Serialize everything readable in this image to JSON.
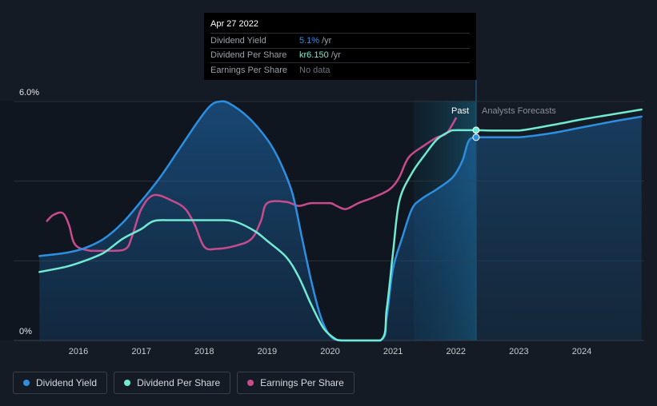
{
  "tooltip": {
    "date": "Apr 27 2022",
    "rows": [
      {
        "label": "Dividend Yield",
        "value": "5.1%",
        "unit": "/yr",
        "color": "#2e8fe0"
      },
      {
        "label": "Dividend Per Share",
        "value": "kr6.150",
        "unit": "/yr",
        "color": "#72ead2"
      },
      {
        "label": "Earnings Per Share",
        "value": "No data",
        "unit": "",
        "color": "#6f747c"
      }
    ]
  },
  "regions": {
    "past_label": "Past",
    "forecast_label": "Analysts Forecasts"
  },
  "legend": [
    {
      "label": "Dividend Yield",
      "color": "#2e8fe0"
    },
    {
      "label": "Dividend Per Share",
      "color": "#72ead2"
    },
    {
      "label": "Earnings Per Share",
      "color": "#c84b8d"
    }
  ],
  "chart_data": {
    "type": "line",
    "title": "",
    "xlabel": "",
    "ylabel": "",
    "xlim": [
      2015.35,
      2024.95
    ],
    "ylim": [
      0,
      6.0
    ],
    "y_tick_labels": [
      {
        "value": 6.0,
        "label": "6.0%"
      },
      {
        "value": 0,
        "label": "0%"
      }
    ],
    "x_ticks": [
      2016,
      2017,
      2018,
      2019,
      2020,
      2021,
      2022,
      2023,
      2024
    ],
    "gridlines_y": [
      2,
      4,
      6
    ],
    "tooltip_x": 2022.32,
    "past_region": [
      2021.33,
      2022.32
    ],
    "series": [
      {
        "name": "Dividend Yield",
        "color": "#2e8fe0",
        "fill": true,
        "points": [
          [
            2015.38,
            2.12
          ],
          [
            2015.8,
            2.2
          ],
          [
            2016.1,
            2.32
          ],
          [
            2016.4,
            2.55
          ],
          [
            2016.7,
            2.95
          ],
          [
            2017.0,
            3.5
          ],
          [
            2017.3,
            4.1
          ],
          [
            2017.6,
            4.8
          ],
          [
            2017.9,
            5.5
          ],
          [
            2018.1,
            5.9
          ],
          [
            2018.25,
            6.0
          ],
          [
            2018.4,
            5.95
          ],
          [
            2018.7,
            5.6
          ],
          [
            2019.0,
            5.05
          ],
          [
            2019.2,
            4.5
          ],
          [
            2019.4,
            3.7
          ],
          [
            2019.55,
            2.6
          ],
          [
            2019.7,
            1.5
          ],
          [
            2019.85,
            0.6
          ],
          [
            2020.0,
            0.12
          ],
          [
            2020.2,
            0
          ],
          [
            2020.8,
            0
          ],
          [
            2020.9,
            0.6
          ],
          [
            2021.0,
            1.8
          ],
          [
            2021.15,
            2.6
          ],
          [
            2021.3,
            3.3
          ],
          [
            2021.45,
            3.55
          ],
          [
            2021.7,
            3.8
          ],
          [
            2021.95,
            4.1
          ],
          [
            2022.1,
            4.5
          ],
          [
            2022.2,
            5.0
          ],
          [
            2022.32,
            5.1
          ],
          [
            2022.6,
            5.1
          ],
          [
            2023.0,
            5.1
          ],
          [
            2023.5,
            5.2
          ],
          [
            2024.0,
            5.35
          ],
          [
            2024.5,
            5.5
          ],
          [
            2024.95,
            5.62
          ]
        ]
      },
      {
        "name": "Dividend Per Share",
        "color": "#72ead2",
        "fill": false,
        "points": [
          [
            2015.38,
            1.72
          ],
          [
            2015.8,
            1.85
          ],
          [
            2016.1,
            2.0
          ],
          [
            2016.4,
            2.2
          ],
          [
            2016.7,
            2.55
          ],
          [
            2017.0,
            2.8
          ],
          [
            2017.2,
            3.0
          ],
          [
            2017.5,
            3.02
          ],
          [
            2018.0,
            3.02
          ],
          [
            2018.3,
            3.02
          ],
          [
            2018.5,
            2.98
          ],
          [
            2018.8,
            2.75
          ],
          [
            2019.0,
            2.5
          ],
          [
            2019.3,
            2.1
          ],
          [
            2019.5,
            1.6
          ],
          [
            2019.7,
            0.9
          ],
          [
            2019.9,
            0.3
          ],
          [
            2020.1,
            0.02
          ],
          [
            2020.2,
            0
          ],
          [
            2020.8,
            0
          ],
          [
            2020.9,
            0.8
          ],
          [
            2021.0,
            2.2
          ],
          [
            2021.1,
            3.5
          ],
          [
            2021.3,
            4.2
          ],
          [
            2021.5,
            4.65
          ],
          [
            2021.7,
            5.05
          ],
          [
            2021.9,
            5.25
          ],
          [
            2022.0,
            5.28
          ],
          [
            2022.32,
            5.28
          ],
          [
            2022.6,
            5.27
          ],
          [
            2023.0,
            5.27
          ],
          [
            2023.5,
            5.4
          ],
          [
            2024.0,
            5.55
          ],
          [
            2024.5,
            5.68
          ],
          [
            2024.95,
            5.8
          ]
        ]
      },
      {
        "name": "Earnings Per Share",
        "color": "#c84b8d",
        "fill": false,
        "points": [
          [
            2015.5,
            3.0
          ],
          [
            2015.6,
            3.15
          ],
          [
            2015.75,
            3.2
          ],
          [
            2015.85,
            2.9
          ],
          [
            2015.95,
            2.4
          ],
          [
            2016.2,
            2.25
          ],
          [
            2016.5,
            2.25
          ],
          [
            2016.75,
            2.3
          ],
          [
            2016.85,
            2.6
          ],
          [
            2017.0,
            3.3
          ],
          [
            2017.2,
            3.65
          ],
          [
            2017.5,
            3.5
          ],
          [
            2017.7,
            3.3
          ],
          [
            2017.85,
            2.9
          ],
          [
            2018.0,
            2.35
          ],
          [
            2018.2,
            2.3
          ],
          [
            2018.5,
            2.38
          ],
          [
            2018.75,
            2.55
          ],
          [
            2018.9,
            3.0
          ],
          [
            2019.0,
            3.45
          ],
          [
            2019.3,
            3.48
          ],
          [
            2019.5,
            3.38
          ],
          [
            2019.7,
            3.45
          ],
          [
            2020.0,
            3.45
          ],
          [
            2020.1,
            3.38
          ],
          [
            2020.25,
            3.3
          ],
          [
            2020.45,
            3.45
          ],
          [
            2020.7,
            3.6
          ],
          [
            2020.95,
            3.8
          ],
          [
            2021.1,
            4.1
          ],
          [
            2021.25,
            4.6
          ],
          [
            2021.5,
            4.9
          ],
          [
            2021.7,
            5.1
          ],
          [
            2021.85,
            5.2
          ],
          [
            2022.0,
            5.58
          ]
        ]
      }
    ]
  }
}
